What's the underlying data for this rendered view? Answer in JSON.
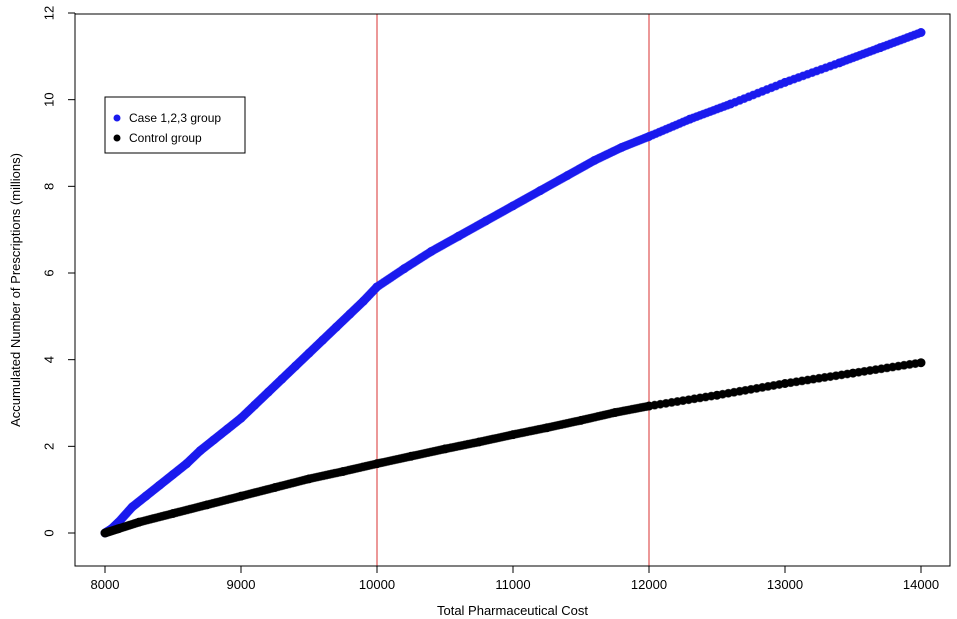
{
  "chart_data": {
    "type": "scatter",
    "xlabel": "Total Pharmaceutical Cost",
    "ylabel": "Accumulated Number of Prescriptions (millions)",
    "xlim": [
      8000,
      14000
    ],
    "ylim": [
      0,
      12
    ],
    "x_ticks": [
      8000,
      9000,
      10000,
      11000,
      12000,
      13000,
      14000
    ],
    "y_ticks": [
      0,
      2,
      4,
      6,
      8,
      10,
      12
    ],
    "vlines": [
      {
        "x": 10000,
        "color": "#d83030"
      },
      {
        "x": 12000,
        "color": "#d83030"
      }
    ],
    "legend_position": "top-left",
    "series": [
      {
        "name": "Case 1,2,3 group",
        "color": "#1a1aee",
        "points": [
          [
            8000,
            0.0
          ],
          [
            8050,
            0.1
          ],
          [
            8100,
            0.25
          ],
          [
            8200,
            0.6
          ],
          [
            8300,
            0.85
          ],
          [
            8400,
            1.1
          ],
          [
            8500,
            1.35
          ],
          [
            8600,
            1.6
          ],
          [
            8700,
            1.9
          ],
          [
            8800,
            2.15
          ],
          [
            8900,
            2.4
          ],
          [
            9000,
            2.65
          ],
          [
            9100,
            2.95
          ],
          [
            9200,
            3.25
          ],
          [
            9300,
            3.55
          ],
          [
            9400,
            3.85
          ],
          [
            9500,
            4.15
          ],
          [
            9600,
            4.45
          ],
          [
            9700,
            4.75
          ],
          [
            9800,
            5.05
          ],
          [
            9900,
            5.35
          ],
          [
            10000,
            5.68
          ],
          [
            10200,
            6.1
          ],
          [
            10400,
            6.5
          ],
          [
            10600,
            6.85
          ],
          [
            10800,
            7.2
          ],
          [
            11000,
            7.55
          ],
          [
            11200,
            7.9
          ],
          [
            11400,
            8.25
          ],
          [
            11600,
            8.6
          ],
          [
            11800,
            8.9
          ],
          [
            12000,
            9.15
          ],
          [
            12300,
            9.55
          ],
          [
            12600,
            9.9
          ],
          [
            13000,
            10.4
          ],
          [
            13400,
            10.85
          ],
          [
            13700,
            11.2
          ],
          [
            14000,
            11.55
          ]
        ]
      },
      {
        "name": "Control group",
        "color": "#000000",
        "points": [
          [
            8000,
            0.0
          ],
          [
            8100,
            0.1
          ],
          [
            8250,
            0.25
          ],
          [
            8500,
            0.45
          ],
          [
            8750,
            0.65
          ],
          [
            9000,
            0.85
          ],
          [
            9250,
            1.05
          ],
          [
            9500,
            1.25
          ],
          [
            9750,
            1.42
          ],
          [
            10000,
            1.6
          ],
          [
            10250,
            1.77
          ],
          [
            10500,
            1.94
          ],
          [
            10750,
            2.1
          ],
          [
            11000,
            2.27
          ],
          [
            11250,
            2.43
          ],
          [
            11500,
            2.6
          ],
          [
            11750,
            2.78
          ],
          [
            12000,
            2.93
          ],
          [
            12500,
            3.18
          ],
          [
            13000,
            3.45
          ],
          [
            13500,
            3.69
          ],
          [
            14000,
            3.93
          ]
        ]
      }
    ]
  }
}
